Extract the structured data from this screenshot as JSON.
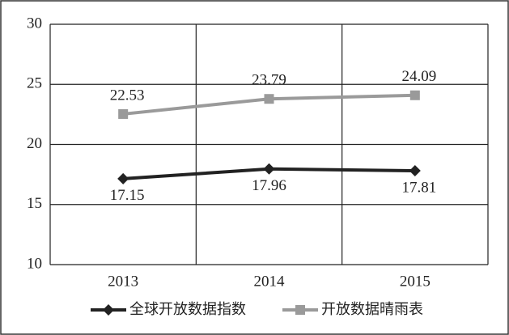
{
  "chart_data": {
    "type": "line",
    "categories": [
      "2013",
      "2014",
      "2015"
    ],
    "series": [
      {
        "name": "全球开放数据指数",
        "color": "#222222",
        "marker": "diamond",
        "values": [
          17.15,
          17.96,
          17.81
        ]
      },
      {
        "name": "开放数据晴雨表",
        "color": "#9a9a9a",
        "marker": "square",
        "values": [
          22.53,
          23.79,
          24.09
        ]
      }
    ],
    "ylim": [
      10,
      30
    ],
    "yticks": [
      10,
      15,
      20,
      25,
      30
    ],
    "grid": true,
    "legend": "bottom"
  }
}
